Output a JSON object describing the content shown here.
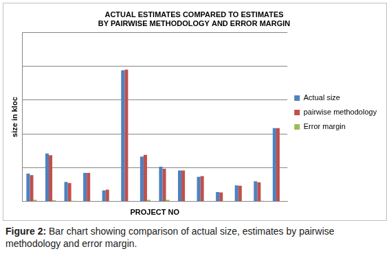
{
  "chart_data": {
    "type": "bar",
    "title": "ACTUAL ESTIMATES COMPARED TO ESTIMATES BY PAIRWISE METHODOLOGY AND ERROR MARGIN",
    "x_label": "PROJECT NO",
    "y_label": "size in kloc",
    "categories": [
      null,
      null,
      null,
      null,
      null,
      null,
      null,
      null,
      null,
      null,
      null,
      null,
      null,
      null
    ],
    "series": [
      {
        "name": "Actual size",
        "color": "#4f81bd",
        "values": [
          0.83,
          1.42,
          0.58,
          0.85,
          0.33,
          3.88,
          1.33,
          1.03,
          0.92,
          0.73,
          0.28,
          0.48,
          0.6,
          2.17
        ]
      },
      {
        "name": "pairwise methodology",
        "color": "#c0504d",
        "values": [
          0.78,
          1.37,
          0.55,
          0.85,
          0.35,
          3.9,
          1.38,
          0.97,
          0.92,
          0.75,
          0.27,
          0.47,
          0.57,
          2.17
        ]
      },
      {
        "name": "Error margin",
        "color": "#9bbb59",
        "values": [
          0.05,
          0.04,
          0.02,
          0,
          0,
          0,
          0.05,
          0.05,
          0,
          0,
          0,
          0,
          0.02,
          0
        ]
      }
    ],
    "ylim": [
      0,
      5
    ],
    "yticks": [
      0,
      1,
      2,
      3,
      4,
      5
    ],
    "grid": true,
    "legend": "right",
    "tick_labels": false,
    "figure_label": "Figure 2:",
    "caption": "Bar chart showing comparison of actual size, estimates by pairwise methodology and error margin."
  }
}
